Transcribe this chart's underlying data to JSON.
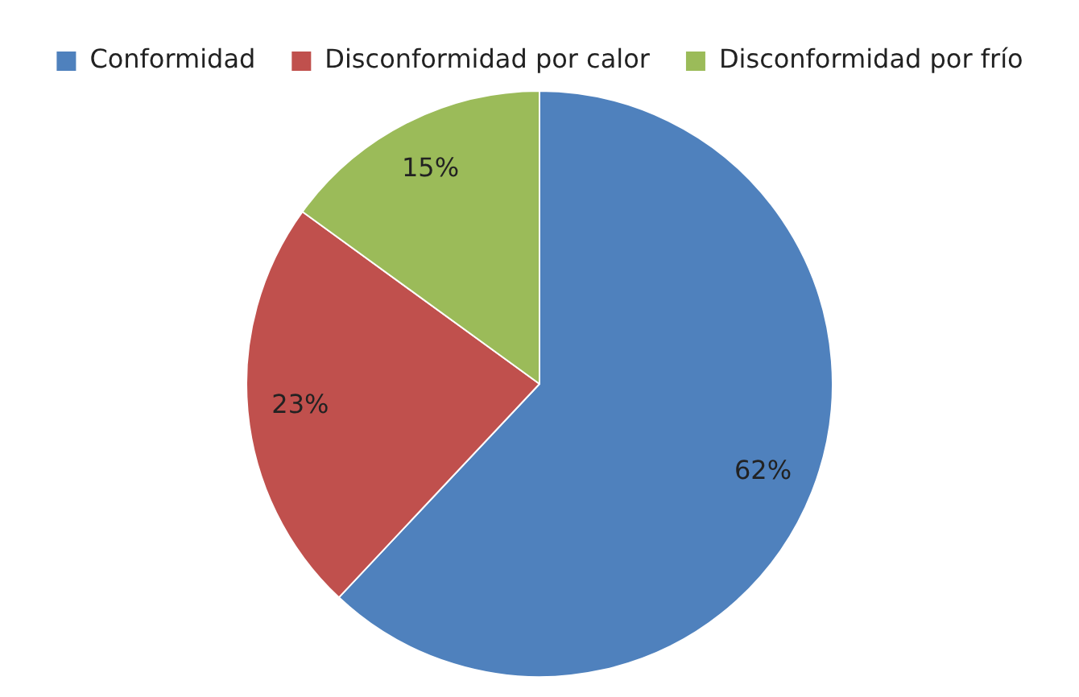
{
  "chart_data": {
    "type": "pie",
    "categories": [
      "Conformidad",
      "Disconformidad por calor",
      "Disconformidad por frío"
    ],
    "values": [
      62,
      23,
      15
    ],
    "colors": [
      "#4f81bd",
      "#c0504d",
      "#9bbb59"
    ],
    "value_labels": [
      "62%",
      "23%",
      "15%"
    ],
    "legend": "top"
  }
}
